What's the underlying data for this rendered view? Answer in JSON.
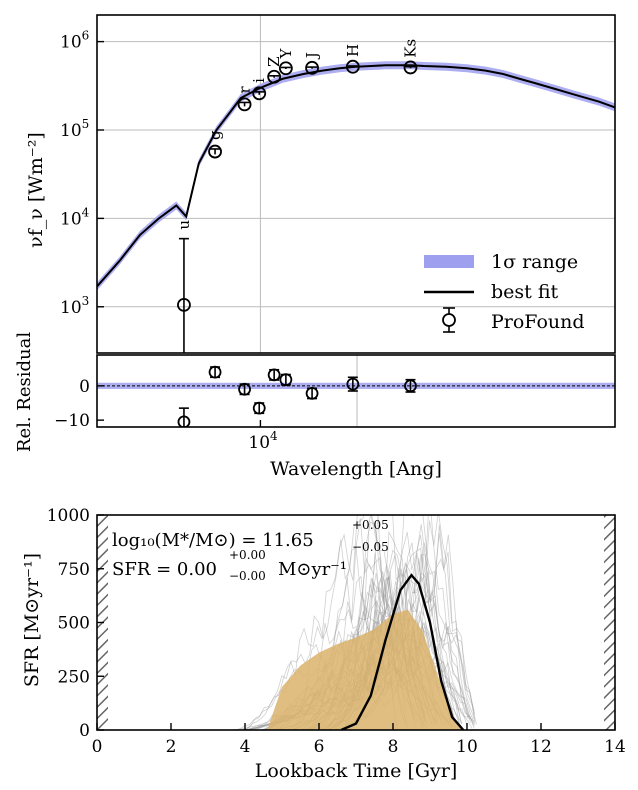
{
  "chart_data": [
    {
      "type": "line",
      "panel": "sed",
      "ylabel": "νf_ν [Wm⁻²]",
      "xscale": "log",
      "yscale": "log",
      "xlim": [
        5000,
        45000
      ],
      "ylim": [
        300,
        2000000
      ],
      "y_ticks": [
        {
          "v": 1000,
          "m": "10",
          "e": "3"
        },
        {
          "v": 10000,
          "m": "10",
          "e": "4"
        },
        {
          "v": 100000,
          "m": "10",
          "e": "5"
        },
        {
          "v": 1000000,
          "m": "10",
          "e": "6"
        }
      ],
      "grid": true,
      "legend": {
        "position": "lower-right",
        "entries": [
          "1σ range",
          "best fit",
          "ProFound"
        ]
      },
      "band_color": "#9f9ff0",
      "best_fit_color": "#000000",
      "best_fit": {
        "x": [
          5000,
          5500,
          6000,
          6500,
          7000,
          7300,
          7700,
          8300,
          8800,
          9200,
          10000,
          11000,
          12000,
          13000,
          14000,
          15000,
          16000,
          17000,
          18000,
          19000,
          20000,
          22000,
          24000,
          26000,
          28000,
          30000,
          32000,
          35000,
          38000,
          42000,
          45000
        ],
        "y": [
          1700,
          3300,
          6500,
          10000,
          14000,
          10500,
          42000,
          100000,
          160000,
          230000,
          300000,
          380000,
          430000,
          470000,
          500000,
          520000,
          530000,
          540000,
          540000,
          540000,
          530000,
          520000,
          500000,
          470000,
          430000,
          380000,
          340000,
          290000,
          250000,
          210000,
          180000
        ]
      },
      "filters": {
        "labels": [
          "u",
          "g",
          "r",
          "i",
          "Z",
          "Y",
          "J",
          "H",
          "Ks"
        ],
        "x": [
          7230,
          8250,
          9350,
          9950,
          10600,
          11140,
          12450,
          14800,
          18900
        ]
      },
      "profound": {
        "x": [
          7230,
          8250,
          9350,
          9950,
          10600,
          11140,
          12450,
          14800,
          18900
        ],
        "y": [
          1050,
          57000,
          195000,
          260000,
          400000,
          500000,
          505000,
          520000,
          510000
        ],
        "err_lo": [
          300,
          53000,
          185000,
          250000,
          390000,
          490000,
          495000,
          510000,
          500000
        ],
        "err_hi": [
          5900,
          61000,
          205000,
          270000,
          410000,
          510000,
          515000,
          530000,
          520000
        ]
      }
    },
    {
      "type": "scatter",
      "panel": "residual",
      "xlabel": "Wavelength [Ang]",
      "ylabel": "Rel. Residual",
      "xscale": "log",
      "xlim": [
        5000,
        45000
      ],
      "ylim": [
        -12,
        9
      ],
      "x_ticks": [
        {
          "v": 10000,
          "m": "10",
          "e": "4"
        }
      ],
      "y_ticks": [
        -10,
        0
      ],
      "points": {
        "x": [
          7230,
          8250,
          9350,
          9950,
          10600,
          11140,
          12450,
          14800,
          18900
        ],
        "y": [
          -10.5,
          4,
          -1,
          -6.5,
          3.2,
          1.8,
          -2.2,
          0.5,
          0
        ],
        "err": [
          4,
          1.5,
          1.5,
          1.5,
          1.5,
          1.5,
          1.5,
          2,
          1.8
        ]
      }
    },
    {
      "type": "area",
      "panel": "sfh",
      "xlabel": "Lookback Time [Gyr]",
      "ylabel": "SFR [M⊙yr⁻¹]",
      "xlim": [
        0,
        14
      ],
      "ylim": [
        0,
        1000
      ],
      "x_ticks": [
        0,
        2,
        4,
        6,
        8,
        10,
        12,
        14
      ],
      "y_ticks": [
        0,
        250,
        500,
        750,
        1000
      ],
      "annotation_mass": {
        "prefix": "log₁₀(M*/M⊙) = 11.65",
        "sup": "+0.05",
        "sub": "−0.05"
      },
      "annotation_sfr": {
        "prefix": "SFR = 0.00",
        "sup": "+0.00",
        "sub": "−0.00",
        "suffix": "M⊙yr⁻¹"
      },
      "range_color": "#dbb36b",
      "best_fit_color": "#000000",
      "range_envelope": {
        "x": [
          4.6,
          5.0,
          5.5,
          6.0,
          6.5,
          7.0,
          7.5,
          8.0,
          8.4,
          8.8,
          9.2,
          9.6,
          9.9
        ],
        "y": [
          0,
          200,
          300,
          360,
          400,
          430,
          470,
          540,
          560,
          460,
          260,
          60,
          0
        ]
      },
      "best_fit": {
        "x": [
          6.6,
          7.0,
          7.4,
          7.8,
          8.2,
          8.5,
          8.7,
          9.0,
          9.3,
          9.6,
          9.9
        ],
        "y": [
          0,
          30,
          160,
          420,
          650,
          720,
          680,
          500,
          230,
          60,
          0
        ]
      }
    }
  ]
}
